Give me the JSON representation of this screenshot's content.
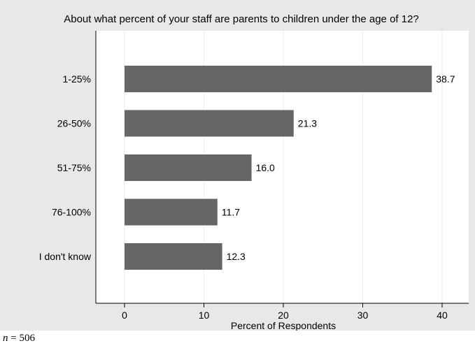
{
  "chart_data": {
    "type": "bar",
    "orientation": "horizontal",
    "title": "About what percent of your staff are parents to children under the age of 12?",
    "xlabel": "Percent of Respondents",
    "ylabel": "",
    "categories": [
      "1-25%",
      "26-50%",
      "51-75%",
      "76-100%",
      "I don't know"
    ],
    "values": [
      38.7,
      21.3,
      16.0,
      11.7,
      12.3
    ],
    "value_labels": [
      "38.7",
      "21.3",
      "16.0",
      "11.7",
      "12.3"
    ],
    "xlim": [
      0,
      40
    ],
    "xticks": [
      0,
      10,
      20,
      30,
      40
    ],
    "grid": true,
    "colors": {
      "bar": "#666666",
      "panel_background": "#e8e8e8",
      "plot_background": "#ffffff",
      "grid": "#e6eef3"
    }
  },
  "footnote": {
    "variable": "n",
    "text": " = 506"
  }
}
